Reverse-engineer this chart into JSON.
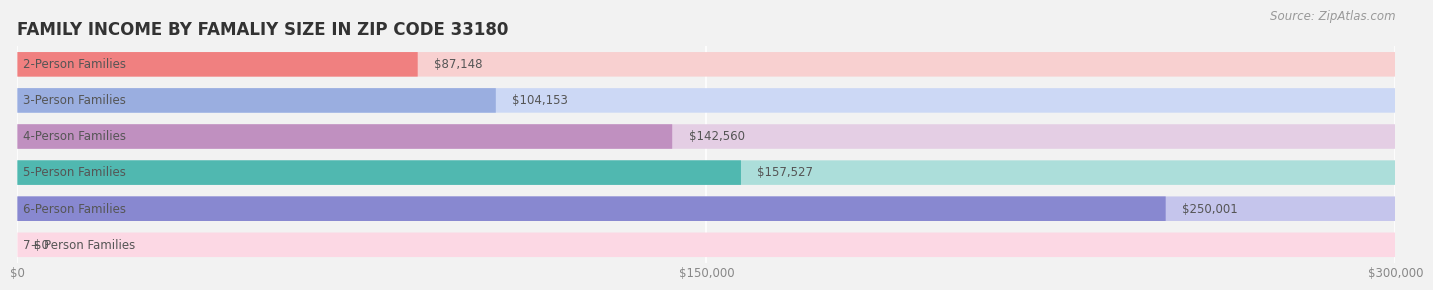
{
  "title": "FAMILY INCOME BY FAMALIY SIZE IN ZIP CODE 33180",
  "source": "Source: ZipAtlas.com",
  "categories": [
    "2-Person Families",
    "3-Person Families",
    "4-Person Families",
    "5-Person Families",
    "6-Person Families",
    "7+ Person Families"
  ],
  "values": [
    87148,
    104153,
    142560,
    157527,
    250001,
    0
  ],
  "labels": [
    "$87,148",
    "$104,153",
    "$142,560",
    "$157,527",
    "$250,001",
    "$0"
  ],
  "bar_colors": [
    "#F08080",
    "#9AAEE0",
    "#C090C0",
    "#50B8B0",
    "#8888D0",
    "#F0A0B8"
  ],
  "bar_bg_colors": [
    "#F8D0D0",
    "#CCD8F5",
    "#E4CEE4",
    "#ACDEDA",
    "#C5C5EC",
    "#FCD8E4"
  ],
  "xlim": [
    0,
    300000
  ],
  "xticks": [
    0,
    150000,
    300000
  ],
  "xticklabels": [
    "$0",
    "$150,000",
    "$300,000"
  ],
  "background_color": "#f2f2f2",
  "title_fontsize": 12,
  "label_fontsize": 8.5,
  "value_fontsize": 8.5,
  "source_fontsize": 8.5
}
